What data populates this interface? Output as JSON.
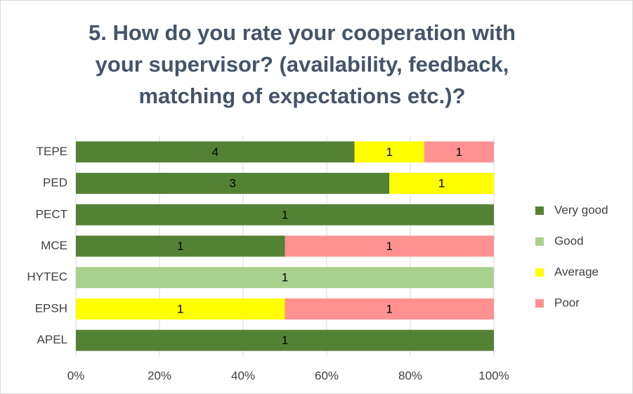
{
  "chart_data": {
    "type": "bar",
    "orientation": "horizontal",
    "stacking": "percent",
    "title": "5. How do you rate your cooperation with your supervisor? (availability, feedback, matching of expectations etc.)?",
    "categories": [
      "TEPE",
      "PED",
      "PECT",
      "MCE",
      "HYTEC",
      "EPSH",
      "APEL"
    ],
    "series": [
      {
        "name": "Very good",
        "color": "#548235",
        "values": [
          4,
          3,
          1,
          1,
          null,
          null,
          1
        ]
      },
      {
        "name": "Good",
        "color": "#a9d18e",
        "values": [
          null,
          null,
          null,
          null,
          1,
          null,
          null
        ]
      },
      {
        "name": "Average",
        "color": "#ffff00",
        "values": [
          1,
          1,
          null,
          null,
          null,
          1,
          null
        ]
      },
      {
        "name": "Poor",
        "color": "#ff9191",
        "values": [
          1,
          null,
          null,
          1,
          null,
          1,
          null
        ]
      }
    ],
    "xlim": [
      0,
      100
    ],
    "xticks": [
      {
        "value": 0,
        "label": "0%"
      },
      {
        "value": 20,
        "label": "20%"
      },
      {
        "value": 40,
        "label": "40%"
      },
      {
        "value": 60,
        "label": "60%"
      },
      {
        "value": 80,
        "label": "80%"
      },
      {
        "value": 100,
        "label": "100%"
      }
    ],
    "grid": true,
    "legend": "right"
  }
}
